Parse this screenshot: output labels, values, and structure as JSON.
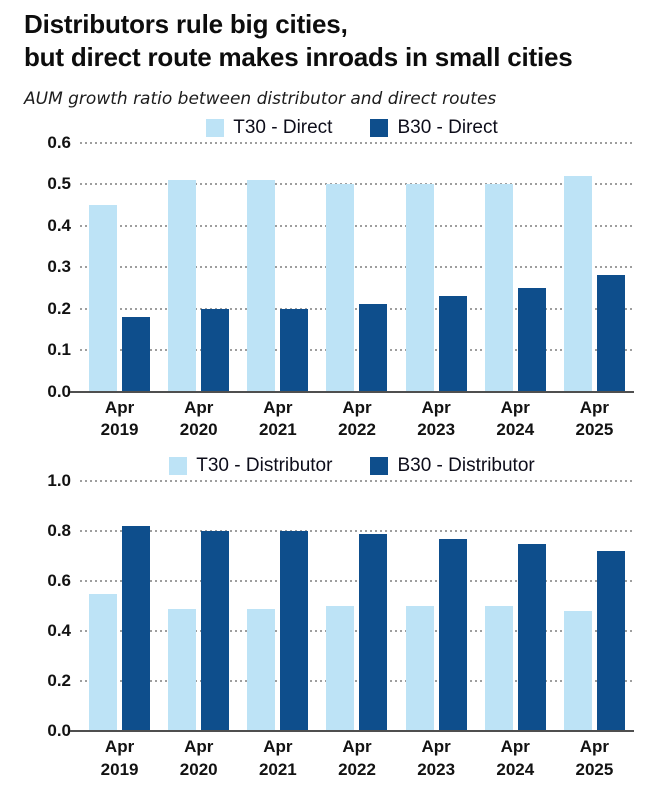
{
  "title": {
    "line1": "Distributors rule big cities,",
    "line2": "but direct route makes inroads in small cities"
  },
  "subtitle": "AUM growth ratio between distributor and direct routes",
  "colors": {
    "light_blue": "#bde3f6",
    "dark_blue": "#0e4e8c",
    "gridline": "#9e9e9e",
    "baseline": "#4f4f4f",
    "text": "#111111"
  },
  "chart_data": [
    {
      "type": "bar",
      "title": "",
      "xlabel": "",
      "ylabel": "",
      "categories": [
        "Apr 2019",
        "Apr 2020",
        "Apr 2021",
        "Apr 2022",
        "Apr 2023",
        "Apr 2024",
        "Apr 2025"
      ],
      "series": [
        {
          "name": "T30 - Direct",
          "color_key": "light_blue",
          "values": [
            0.45,
            0.51,
            0.51,
            0.5,
            0.5,
            0.5,
            0.52
          ]
        },
        {
          "name": "B30 - Direct",
          "color_key": "dark_blue",
          "values": [
            0.18,
            0.2,
            0.2,
            0.21,
            0.23,
            0.25,
            0.28
          ]
        }
      ],
      "ylim": [
        0,
        0.6
      ],
      "yticks": [
        "0.0",
        "0.1",
        "0.2",
        "0.3",
        "0.4",
        "0.5",
        "0.6"
      ],
      "grid": true,
      "legend_position": "top"
    },
    {
      "type": "bar",
      "title": "",
      "xlabel": "",
      "ylabel": "",
      "categories": [
        "Apr 2019",
        "Apr 2020",
        "Apr 2021",
        "Apr 2022",
        "Apr 2023",
        "Apr 2024",
        "Apr 2025"
      ],
      "series": [
        {
          "name": "T30 - Distributor",
          "color_key": "light_blue",
          "values": [
            0.55,
            0.49,
            0.49,
            0.5,
            0.5,
            0.5,
            0.48
          ]
        },
        {
          "name": "B30 - Distributor",
          "color_key": "dark_blue",
          "values": [
            0.82,
            0.8,
            0.8,
            0.79,
            0.77,
            0.75,
            0.72
          ]
        }
      ],
      "ylim": [
        0,
        1.0
      ],
      "yticks": [
        "0.0",
        "0.2",
        "0.4",
        "0.6",
        "0.8",
        "1.0"
      ],
      "grid": true,
      "legend_position": "top"
    }
  ]
}
